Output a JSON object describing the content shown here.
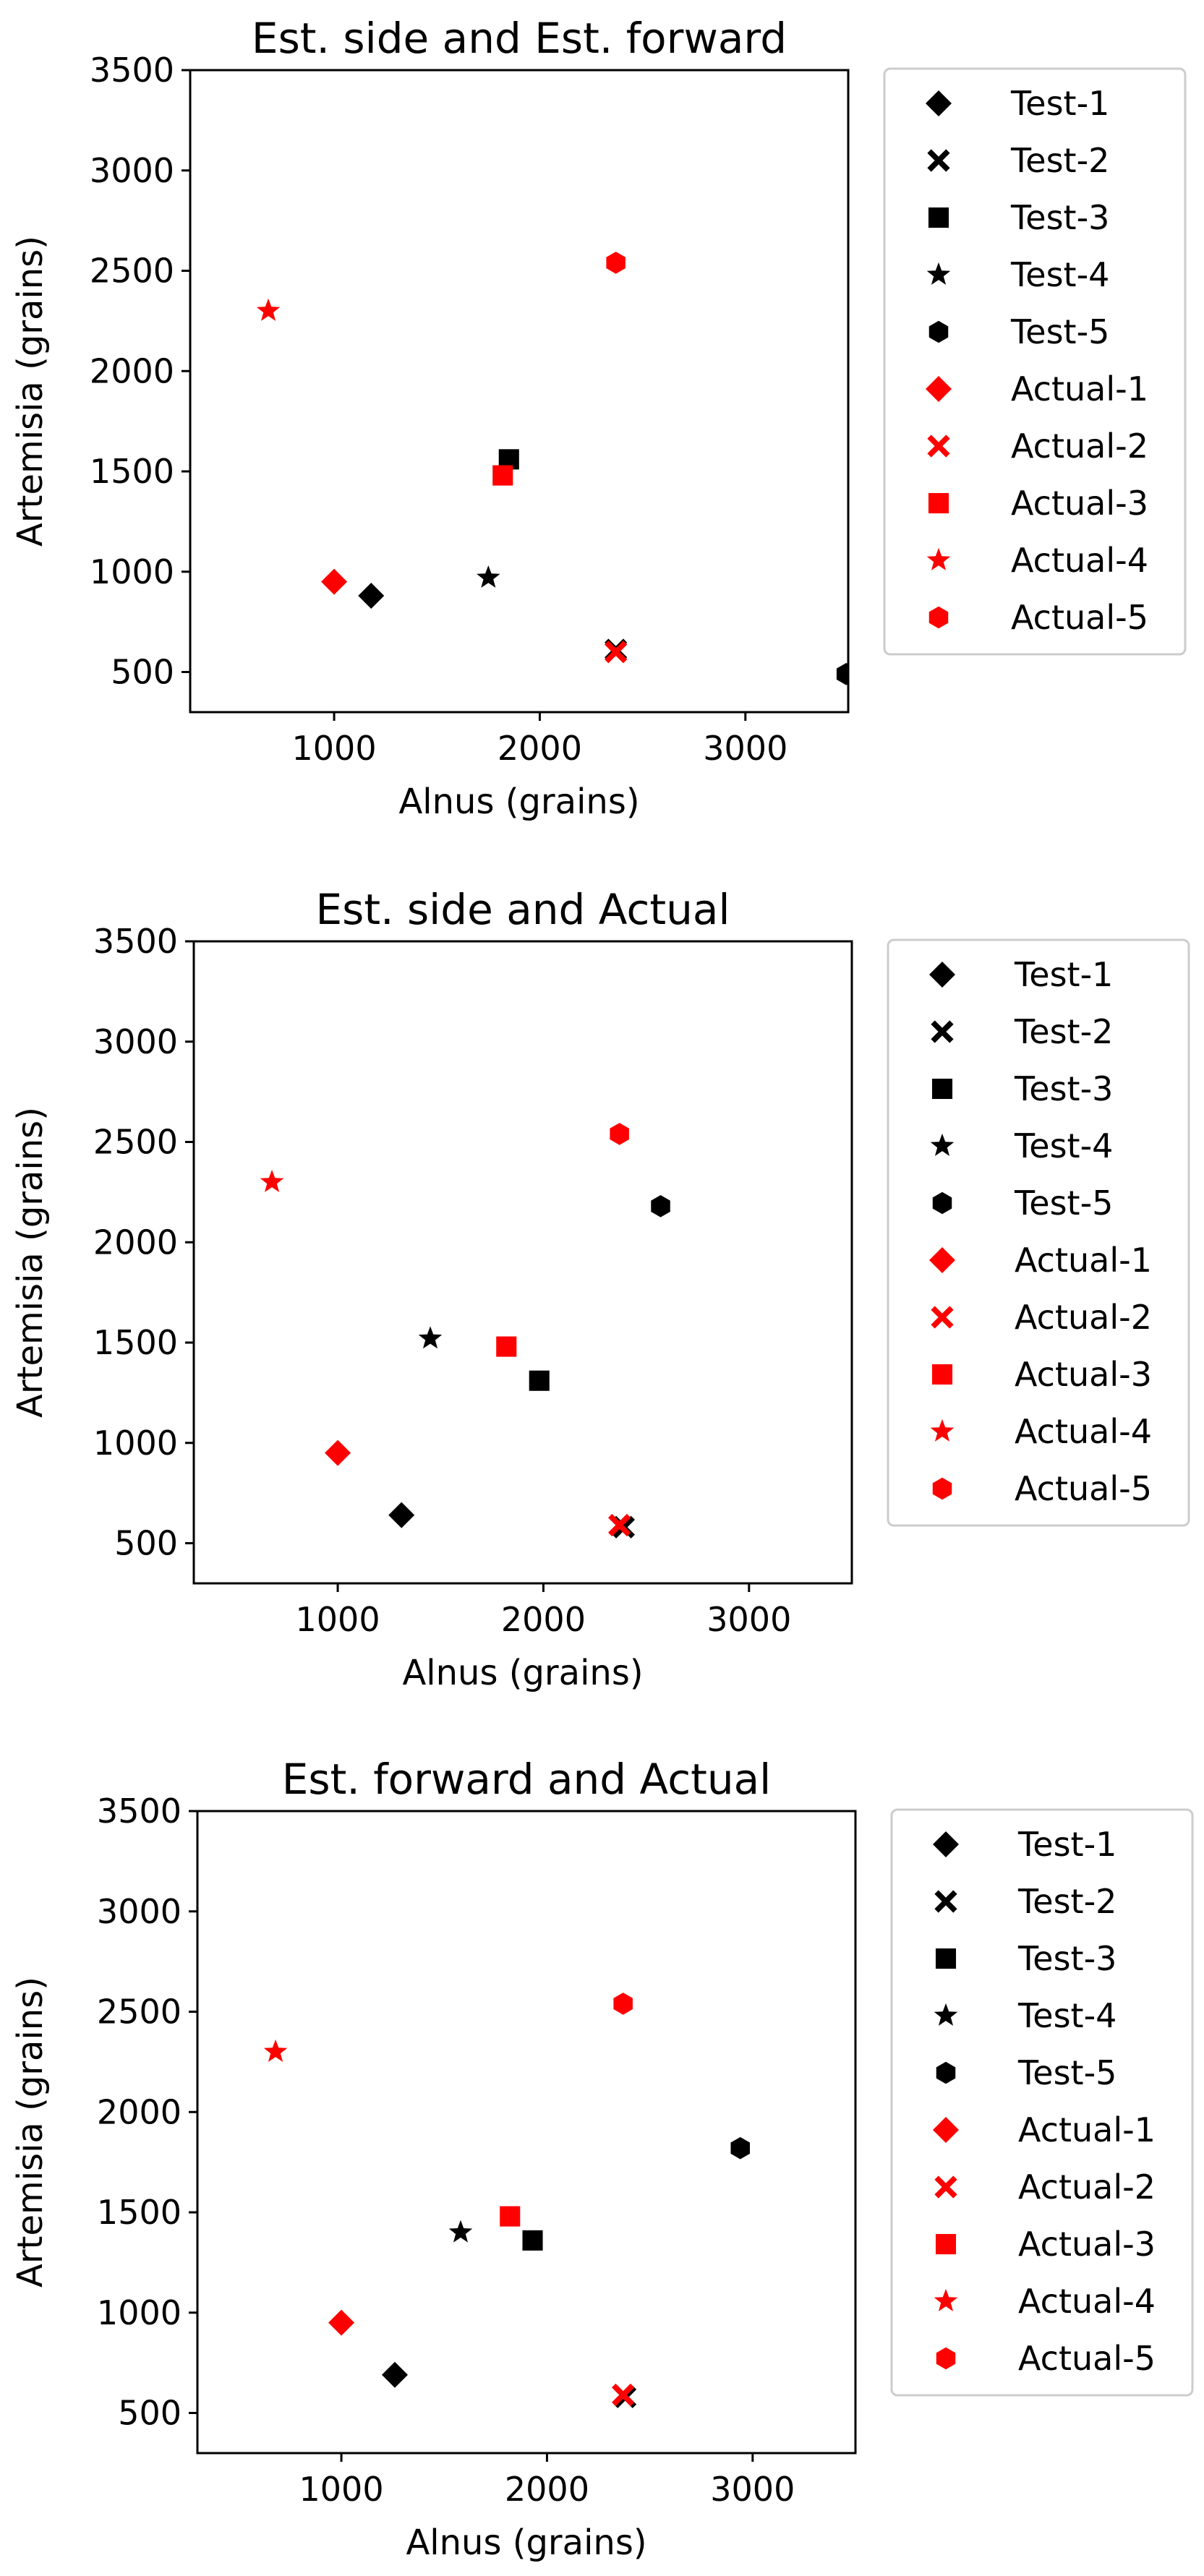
{
  "colors": {
    "test": "#000000",
    "actual": "#ff0000",
    "axes": "#000000",
    "legend_border": "#cccccc",
    "background": "#ffffff"
  },
  "chart_data": [
    {
      "type": "scatter",
      "title": "Est. side and Est. forward",
      "xlabel": "Alnus (grains)",
      "ylabel": "Artemisia (grains)",
      "xlim": [
        300,
        3500
      ],
      "ylim": [
        300,
        3500
      ],
      "x_ticks": [
        1000,
        2000,
        3000
      ],
      "y_ticks": [
        500,
        1000,
        1500,
        2000,
        2500,
        3000,
        3500
      ],
      "grid": false,
      "legend_position": "outside right",
      "series": [
        {
          "name": "Test-1",
          "marker": "diamond",
          "color": "#000000",
          "points": [
            [
              1180,
              880
            ]
          ]
        },
        {
          "name": "Test-2",
          "marker": "x",
          "color": "#000000",
          "points": [
            [
              2370,
              610
            ]
          ]
        },
        {
          "name": "Test-3",
          "marker": "square",
          "color": "#000000",
          "points": [
            [
              1850,
              1560
            ]
          ]
        },
        {
          "name": "Test-4",
          "marker": "star",
          "color": "#000000",
          "points": [
            [
              1750,
              970
            ]
          ]
        },
        {
          "name": "Test-5",
          "marker": "hexagon",
          "color": "#000000",
          "points": [
            [
              3490,
              490
            ]
          ]
        },
        {
          "name": "Actual-1",
          "marker": "diamond",
          "color": "#ff0000",
          "points": [
            [
              1000,
              950
            ]
          ]
        },
        {
          "name": "Actual-2",
          "marker": "x",
          "color": "#ff0000",
          "points": [
            [
              2370,
              600
            ]
          ]
        },
        {
          "name": "Actual-3",
          "marker": "square",
          "color": "#ff0000",
          "points": [
            [
              1820,
              1480
            ]
          ]
        },
        {
          "name": "Actual-4",
          "marker": "star",
          "color": "#ff0000",
          "points": [
            [
              680,
              2300
            ]
          ]
        },
        {
          "name": "Actual-5",
          "marker": "hexagon",
          "color": "#ff0000",
          "points": [
            [
              2370,
              2540
            ]
          ]
        }
      ]
    },
    {
      "type": "scatter",
      "title": "Est. side and Actual",
      "xlabel": "Alnus (grains)",
      "ylabel": "Artemisia (grains)",
      "xlim": [
        300,
        3500
      ],
      "ylim": [
        300,
        3500
      ],
      "x_ticks": [
        1000,
        2000,
        3000
      ],
      "y_ticks": [
        500,
        1000,
        1500,
        2000,
        2500,
        3000,
        3500
      ],
      "grid": false,
      "legend_position": "outside right",
      "series": [
        {
          "name": "Test-1",
          "marker": "diamond",
          "color": "#000000",
          "points": [
            [
              1310,
              640
            ]
          ]
        },
        {
          "name": "Test-2",
          "marker": "x",
          "color": "#000000",
          "points": [
            [
              2390,
              580
            ]
          ]
        },
        {
          "name": "Test-3",
          "marker": "square",
          "color": "#000000",
          "points": [
            [
              1980,
              1310
            ]
          ]
        },
        {
          "name": "Test-4",
          "marker": "star",
          "color": "#000000",
          "points": [
            [
              1450,
              1520
            ]
          ]
        },
        {
          "name": "Test-5",
          "marker": "hexagon",
          "color": "#000000",
          "points": [
            [
              2570,
              2180
            ]
          ]
        },
        {
          "name": "Actual-1",
          "marker": "diamond",
          "color": "#ff0000",
          "points": [
            [
              1000,
              950
            ]
          ]
        },
        {
          "name": "Actual-2",
          "marker": "x",
          "color": "#ff0000",
          "points": [
            [
              2370,
              590
            ]
          ]
        },
        {
          "name": "Actual-3",
          "marker": "square",
          "color": "#ff0000",
          "points": [
            [
              1820,
              1480
            ]
          ]
        },
        {
          "name": "Actual-4",
          "marker": "star",
          "color": "#ff0000",
          "points": [
            [
              680,
              2300
            ]
          ]
        },
        {
          "name": "Actual-5",
          "marker": "hexagon",
          "color": "#ff0000",
          "points": [
            [
              2370,
              2540
            ]
          ]
        }
      ]
    },
    {
      "type": "scatter",
      "title": "Est. forward and Actual",
      "xlabel": "Alnus (grains)",
      "ylabel": "Artemisia (grains)",
      "xlim": [
        300,
        3500
      ],
      "ylim": [
        300,
        3500
      ],
      "x_ticks": [
        1000,
        2000,
        3000
      ],
      "y_ticks": [
        500,
        1000,
        1500,
        2000,
        2500,
        3000,
        3500
      ],
      "grid": false,
      "legend_position": "outside right",
      "series": [
        {
          "name": "Test-1",
          "marker": "diamond",
          "color": "#000000",
          "points": [
            [
              1260,
              690
            ]
          ]
        },
        {
          "name": "Test-2",
          "marker": "x",
          "color": "#000000",
          "points": [
            [
              2380,
              580
            ]
          ]
        },
        {
          "name": "Test-3",
          "marker": "square",
          "color": "#000000",
          "points": [
            [
              1930,
              1360
            ]
          ]
        },
        {
          "name": "Test-4",
          "marker": "star",
          "color": "#000000",
          "points": [
            [
              1580,
              1400
            ]
          ]
        },
        {
          "name": "Test-5",
          "marker": "hexagon",
          "color": "#000000",
          "points": [
            [
              2940,
              1820
            ]
          ]
        },
        {
          "name": "Actual-1",
          "marker": "diamond",
          "color": "#ff0000",
          "points": [
            [
              1000,
              950
            ]
          ]
        },
        {
          "name": "Actual-2",
          "marker": "x",
          "color": "#ff0000",
          "points": [
            [
              2370,
              590
            ]
          ]
        },
        {
          "name": "Actual-3",
          "marker": "square",
          "color": "#ff0000",
          "points": [
            [
              1820,
              1480
            ]
          ]
        },
        {
          "name": "Actual-4",
          "marker": "star",
          "color": "#ff0000",
          "points": [
            [
              680,
              2300
            ]
          ]
        },
        {
          "name": "Actual-5",
          "marker": "hexagon",
          "color": "#ff0000",
          "points": [
            [
              2370,
              2540
            ]
          ]
        }
      ]
    }
  ]
}
